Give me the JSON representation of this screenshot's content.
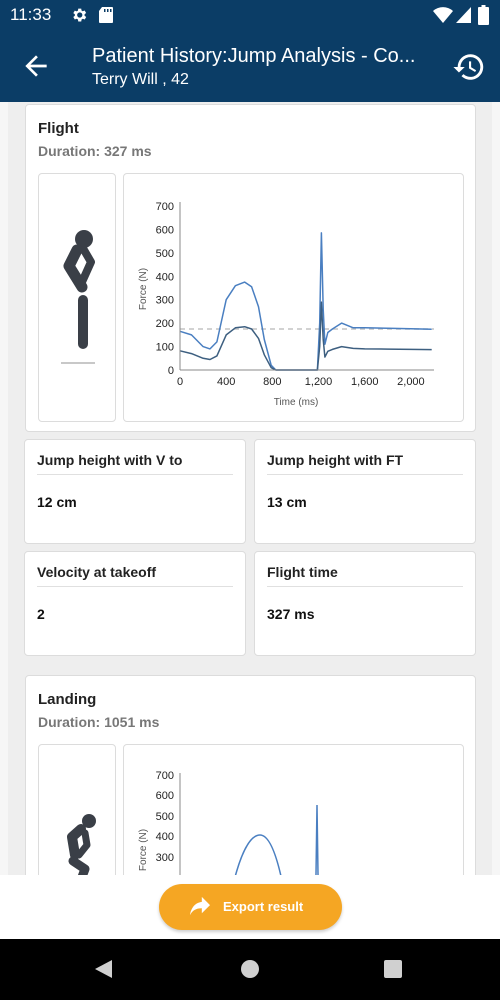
{
  "status_bar": {
    "time": "11:33",
    "left_icons": [
      "gear-icon",
      "sd-card-icon"
    ],
    "right_icons": [
      "wifi-icon",
      "signal-icon",
      "battery-icon"
    ]
  },
  "app_bar": {
    "title": "Patient History:Jump Analysis - Co...",
    "subtitle": "Terry Will , 42",
    "background": "#0b3d66"
  },
  "flight": {
    "title": "Flight",
    "duration": "Duration: 327 ms",
    "chart_data": {
      "type": "line",
      "ylabel": "Force (N)",
      "xlabel": "Time (ms)",
      "xlim": [
        0,
        2200
      ],
      "ylim": [
        0,
        700
      ],
      "yticks": [
        "0",
        "100",
        "200",
        "300",
        "400",
        "500",
        "600",
        "700"
      ],
      "xticks": [
        "0",
        "400",
        "800",
        "1,200",
        "1,600",
        "2,000"
      ],
      "reference_line": 175,
      "series": [
        {
          "color": "#4a7fc1",
          "x": [
            0,
            100,
            200,
            260,
            320,
            400,
            480,
            560,
            620,
            680,
            730,
            790,
            830,
            870,
            1000,
            1150,
            1190,
            1210,
            1225,
            1240,
            1255,
            1280,
            1320,
            1400,
            1500,
            1600,
            1800,
            2000,
            2180
          ],
          "y": [
            165,
            150,
            100,
            90,
            120,
            300,
            360,
            375,
            355,
            270,
            130,
            20,
            0,
            0,
            0,
            0,
            0,
            200,
            585,
            260,
            110,
            160,
            175,
            200,
            180,
            180,
            178,
            176,
            174
          ]
        },
        {
          "color": "#3d5f80",
          "x": [
            0,
            100,
            200,
            260,
            320,
            400,
            480,
            560,
            620,
            680,
            730,
            790,
            830,
            870,
            1000,
            1150,
            1190,
            1210,
            1225,
            1240,
            1255,
            1280,
            1320,
            1400,
            1500,
            1600,
            1800,
            2000,
            2180
          ],
          "y": [
            82,
            70,
            50,
            45,
            60,
            150,
            180,
            185,
            175,
            135,
            65,
            10,
            0,
            0,
            0,
            0,
            0,
            100,
            290,
            130,
            55,
            80,
            88,
            100,
            92,
            90,
            89,
            88,
            87
          ]
        }
      ]
    }
  },
  "metrics": [
    {
      "label": "Jump height with V to",
      "value": "12 cm"
    },
    {
      "label": "Jump height with FT",
      "value": "13 cm"
    },
    {
      "label": "Velocity at takeoff",
      "value": "2"
    },
    {
      "label": "Flight time",
      "value": "327 ms"
    }
  ],
  "landing": {
    "title": "Landing",
    "duration": "Duration: 1051 ms",
    "chart_data": {
      "type": "line",
      "ylabel": "Force (N)",
      "yticks": [
        "700",
        "600",
        "500",
        "400",
        "300"
      ]
    }
  },
  "export_button": {
    "label": "Export result",
    "icon": "share-arrow-icon",
    "color": "#f5a623"
  },
  "nav_bar": {
    "buttons": [
      "back-triangle-icon",
      "home-circle-icon",
      "recents-square-icon"
    ]
  }
}
